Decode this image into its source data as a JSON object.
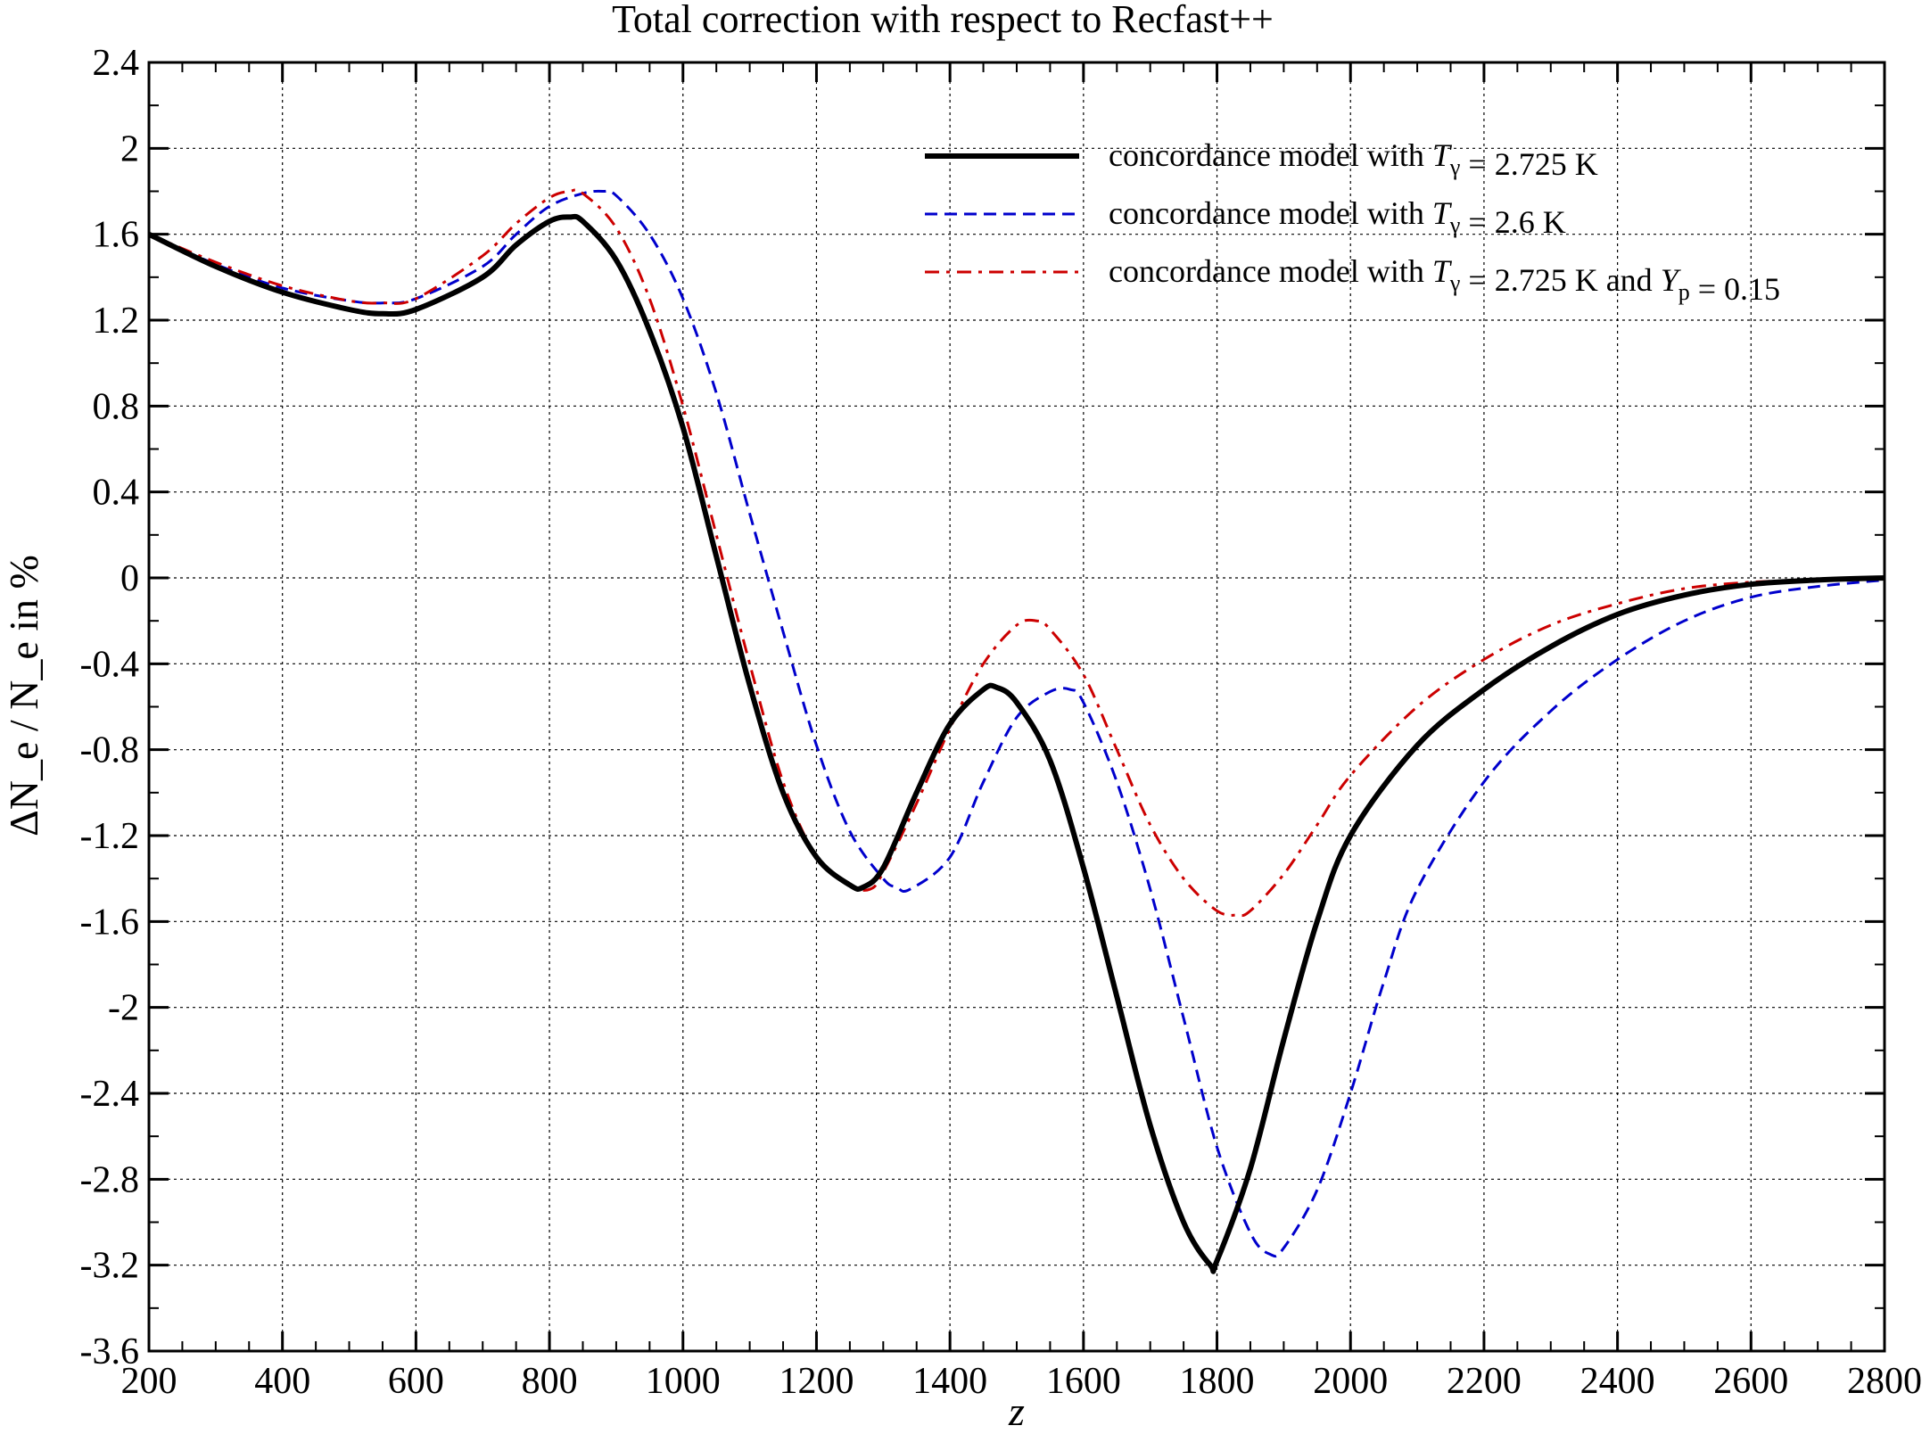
{
  "chart_data": {
    "type": "line",
    "title": "Total correction with respect to Recfast++",
    "xlabel": "z",
    "ylabel": "ΔN_e / N_e in %",
    "xlim": [
      200,
      2800
    ],
    "ylim": [
      -3.6,
      2.4
    ],
    "x_ticks": [
      200,
      400,
      600,
      800,
      1000,
      1200,
      1400,
      1600,
      1800,
      2000,
      2200,
      2400,
      2600,
      2800
    ],
    "y_ticks": [
      2.4,
      2,
      1.6,
      1.2,
      0.8,
      0.4,
      0,
      -0.4,
      -0.8,
      -1.2,
      -1.6,
      -2,
      -2.4,
      -2.8,
      -3.2,
      -3.6
    ],
    "grid": true,
    "legend_position": "top-right",
    "series": [
      {
        "name": "concordance model with T_γ = 2.725 K",
        "color": "#000000",
        "style": "solid",
        "x": [
          200,
          300,
          400,
          500,
          550,
          600,
          700,
          750,
          800,
          830,
          850,
          900,
          950,
          1000,
          1050,
          1100,
          1150,
          1200,
          1250,
          1270,
          1300,
          1350,
          1400,
          1450,
          1470,
          1500,
          1550,
          1600,
          1650,
          1700,
          1750,
          1790,
          1800,
          1850,
          1900,
          1950,
          2000,
          2100,
          2200,
          2300,
          2400,
          2500,
          2600,
          2700,
          2800
        ],
        "y": [
          1.6,
          1.45,
          1.33,
          1.25,
          1.23,
          1.25,
          1.4,
          1.55,
          1.66,
          1.68,
          1.66,
          1.48,
          1.15,
          0.7,
          0.1,
          -0.5,
          -1.0,
          -1.3,
          -1.43,
          -1.44,
          -1.35,
          -1.0,
          -0.68,
          -0.52,
          -0.51,
          -0.58,
          -0.85,
          -1.35,
          -1.95,
          -2.55,
          -3.0,
          -3.2,
          -3.18,
          -2.75,
          -2.15,
          -1.6,
          -1.2,
          -0.78,
          -0.52,
          -0.32,
          -0.17,
          -0.08,
          -0.03,
          -0.01,
          0.0
        ]
      },
      {
        "name": "concordance model with T_γ = 2.6 K",
        "color": "#0000cc",
        "style": "dashed",
        "x": [
          200,
          300,
          400,
          500,
          550,
          600,
          700,
          750,
          800,
          850,
          880,
          900,
          950,
          1000,
          1050,
          1100,
          1150,
          1200,
          1250,
          1300,
          1320,
          1340,
          1400,
          1450,
          1500,
          1550,
          1580,
          1600,
          1650,
          1700,
          1750,
          1800,
          1850,
          1880,
          1900,
          1950,
          2000,
          2050,
          2100,
          2200,
          2300,
          2400,
          2500,
          2600,
          2700,
          2800
        ],
        "y": [
          1.6,
          1.46,
          1.35,
          1.29,
          1.28,
          1.3,
          1.45,
          1.6,
          1.73,
          1.79,
          1.8,
          1.78,
          1.6,
          1.3,
          0.86,
          0.3,
          -0.25,
          -0.78,
          -1.18,
          -1.4,
          -1.44,
          -1.45,
          -1.3,
          -0.95,
          -0.65,
          -0.53,
          -0.52,
          -0.58,
          -0.95,
          -1.45,
          -2.05,
          -2.65,
          -3.05,
          -3.15,
          -3.12,
          -2.85,
          -2.4,
          -1.88,
          -1.45,
          -0.95,
          -0.62,
          -0.38,
          -0.2,
          -0.09,
          -0.04,
          -0.01
        ]
      },
      {
        "name": "concordance model with T_γ = 2.725 K and Y_p = 0.15",
        "color": "#cc0000",
        "style": "dash-dot",
        "x": [
          200,
          300,
          400,
          500,
          550,
          600,
          700,
          750,
          800,
          830,
          850,
          900,
          950,
          1000,
          1050,
          1100,
          1150,
          1200,
          1250,
          1280,
          1300,
          1350,
          1400,
          1450,
          1500,
          1530,
          1550,
          1600,
          1650,
          1700,
          1750,
          1800,
          1830,
          1850,
          1900,
          1950,
          2000,
          2100,
          2200,
          2300,
          2400,
          2500,
          2600,
          2700,
          2800
        ],
        "y": [
          1.6,
          1.47,
          1.36,
          1.29,
          1.28,
          1.3,
          1.5,
          1.65,
          1.77,
          1.8,
          1.79,
          1.63,
          1.3,
          0.8,
          0.2,
          -0.4,
          -0.95,
          -1.3,
          -1.43,
          -1.45,
          -1.37,
          -1.05,
          -0.7,
          -0.4,
          -0.22,
          -0.2,
          -0.24,
          -0.45,
          -0.8,
          -1.15,
          -1.4,
          -1.55,
          -1.57,
          -1.55,
          -1.38,
          -1.15,
          -0.92,
          -0.6,
          -0.38,
          -0.22,
          -0.12,
          -0.05,
          -0.02,
          -0.01,
          0.0
        ]
      }
    ]
  }
}
